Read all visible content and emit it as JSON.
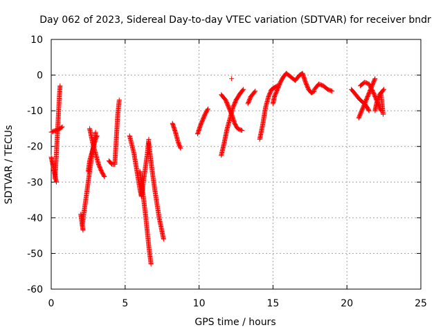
{
  "chart_data": {
    "type": "scatter",
    "title": "Day 062 of 2023, Sidereal Day-to-day VTEC variation (SDTVAR) for receiver bndr",
    "xlabel": "GPS time / hours",
    "ylabel": "SDTVAR / TECUs",
    "xlim": [
      0,
      25
    ],
    "ylim": [
      -60,
      10
    ],
    "xticks": [
      0,
      5,
      10,
      15,
      20,
      25
    ],
    "yticks": [
      10,
      0,
      -10,
      -20,
      -30,
      -40,
      -50,
      -60
    ],
    "grid": true,
    "marker": "+",
    "color": "#ff0000",
    "series": [
      {
        "values": [
          [
            0.0,
            -16
          ],
          [
            0.3,
            -15.5
          ],
          [
            0.6,
            -15
          ],
          [
            0.75,
            -14.5
          ]
        ]
      },
      {
        "values": [
          [
            0.0,
            -23
          ],
          [
            0.1,
            -25
          ],
          [
            0.2,
            -27
          ],
          [
            0.3,
            -29
          ],
          [
            0.35,
            -30
          ]
        ]
      },
      {
        "values": [
          [
            0.25,
            -29
          ],
          [
            0.3,
            -26
          ],
          [
            0.35,
            -22
          ],
          [
            0.4,
            -18
          ],
          [
            0.45,
            -14
          ],
          [
            0.5,
            -10
          ],
          [
            0.55,
            -6
          ],
          [
            0.6,
            -3
          ]
        ]
      },
      {
        "values": [
          [
            2.0,
            -39
          ],
          [
            2.1,
            -42
          ],
          [
            2.15,
            -43.5
          ]
        ]
      },
      {
        "values": [
          [
            2.1,
            -42
          ],
          [
            2.3,
            -36
          ],
          [
            2.5,
            -30
          ],
          [
            2.7,
            -24
          ],
          [
            2.85,
            -20
          ],
          [
            3.0,
            -16
          ]
        ]
      },
      {
        "values": [
          [
            2.6,
            -15
          ],
          [
            2.8,
            -19
          ],
          [
            3.0,
            -22
          ],
          [
            3.2,
            -25
          ],
          [
            3.4,
            -27
          ],
          [
            3.6,
            -28.5
          ]
        ]
      },
      {
        "values": [
          [
            2.5,
            -27
          ],
          [
            2.6,
            -24
          ],
          [
            2.8,
            -21
          ],
          [
            3.0,
            -18
          ],
          [
            3.1,
            -17
          ]
        ]
      },
      {
        "values": [
          [
            3.9,
            -24
          ],
          [
            4.1,
            -25
          ],
          [
            4.3,
            -25
          ]
        ]
      },
      {
        "values": [
          [
            4.3,
            -25
          ],
          [
            4.4,
            -18
          ],
          [
            4.5,
            -11
          ],
          [
            4.6,
            -7
          ]
        ]
      },
      {
        "values": [
          [
            5.3,
            -17
          ],
          [
            5.6,
            -22
          ],
          [
            5.8,
            -27
          ],
          [
            6.0,
            -32
          ],
          [
            6.1,
            -34
          ]
        ]
      },
      {
        "values": [
          [
            6.0,
            -27
          ],
          [
            6.2,
            -33
          ],
          [
            6.4,
            -40
          ],
          [
            6.6,
            -48
          ],
          [
            6.75,
            -53
          ]
        ]
      },
      {
        "values": [
          [
            6.1,
            -34
          ],
          [
            6.3,
            -28
          ],
          [
            6.5,
            -22
          ],
          [
            6.6,
            -18
          ]
        ]
      },
      {
        "values": [
          [
            6.6,
            -19
          ],
          [
            6.8,
            -26
          ],
          [
            7.0,
            -32
          ],
          [
            7.3,
            -40
          ],
          [
            7.6,
            -46
          ]
        ]
      },
      {
        "values": [
          [
            8.2,
            -13.5
          ],
          [
            8.4,
            -16
          ],
          [
            8.6,
            -19
          ],
          [
            8.75,
            -20.5
          ]
        ]
      },
      {
        "values": [
          [
            9.9,
            -16.5
          ],
          [
            10.1,
            -14
          ],
          [
            10.4,
            -11
          ],
          [
            10.6,
            -9.5
          ]
        ]
      },
      {
        "values": [
          [
            11.5,
            -22.5
          ],
          [
            11.7,
            -19
          ],
          [
            11.9,
            -15
          ],
          [
            12.1,
            -12
          ],
          [
            12.3,
            -9
          ],
          [
            12.5,
            -7
          ],
          [
            12.8,
            -5
          ],
          [
            13.0,
            -4
          ]
        ]
      },
      {
        "values": [
          [
            11.5,
            -5.5
          ],
          [
            11.8,
            -7
          ],
          [
            12.0,
            -9
          ],
          [
            12.2,
            -11
          ],
          [
            12.4,
            -13.5
          ],
          [
            12.6,
            -15
          ],
          [
            12.9,
            -15.5
          ]
        ]
      },
      {
        "values": [
          [
            13.3,
            -8
          ],
          [
            13.5,
            -6
          ],
          [
            13.8,
            -4.5
          ]
        ]
      },
      {
        "values": [
          [
            12.2,
            -1
          ]
        ]
      },
      {
        "values": [
          [
            14.1,
            -18
          ],
          [
            14.3,
            -14
          ],
          [
            14.5,
            -9
          ],
          [
            14.7,
            -6
          ],
          [
            14.9,
            -4
          ],
          [
            15.1,
            -3.5
          ],
          [
            15.3,
            -3
          ]
        ]
      },
      {
        "values": [
          [
            15.0,
            -8
          ],
          [
            15.1,
            -6
          ],
          [
            15.3,
            -4
          ],
          [
            15.5,
            -2
          ],
          [
            15.7,
            -0.5
          ],
          [
            15.9,
            0.5
          ]
        ]
      },
      {
        "values": [
          [
            15.9,
            0.5
          ],
          [
            16.2,
            -0.5
          ],
          [
            16.5,
            -1.5
          ],
          [
            16.8,
            0
          ],
          [
            17.0,
            0.5
          ],
          [
            17.2,
            -2
          ],
          [
            17.4,
            -4
          ],
          [
            17.6,
            -5
          ],
          [
            17.8,
            -4.5
          ]
        ]
      },
      {
        "values": [
          [
            17.8,
            -4
          ],
          [
            18.1,
            -2.5
          ],
          [
            18.4,
            -3
          ],
          [
            18.7,
            -4
          ],
          [
            19.0,
            -4.5
          ]
        ]
      },
      {
        "values": [
          [
            20.3,
            -4
          ],
          [
            20.6,
            -5.5
          ],
          [
            20.9,
            -7
          ],
          [
            21.2,
            -8
          ],
          [
            21.5,
            -10
          ]
        ]
      },
      {
        "values": [
          [
            20.8,
            -12
          ],
          [
            21.0,
            -10
          ],
          [
            21.3,
            -7
          ],
          [
            21.6,
            -4
          ],
          [
            21.9,
            -1
          ]
        ]
      },
      {
        "values": [
          [
            20.9,
            -3
          ],
          [
            21.2,
            -2
          ],
          [
            21.5,
            -2.5
          ],
          [
            21.8,
            -5
          ],
          [
            22.1,
            -8
          ],
          [
            22.3,
            -10
          ]
        ]
      },
      {
        "values": [
          [
            21.9,
            -10
          ],
          [
            22.0,
            -8
          ],
          [
            22.2,
            -5.5
          ],
          [
            22.5,
            -4
          ]
        ]
      },
      {
        "values": [
          [
            22.3,
            -5
          ],
          [
            22.35,
            -7
          ],
          [
            22.4,
            -9
          ],
          [
            22.45,
            -11
          ]
        ]
      }
    ]
  }
}
